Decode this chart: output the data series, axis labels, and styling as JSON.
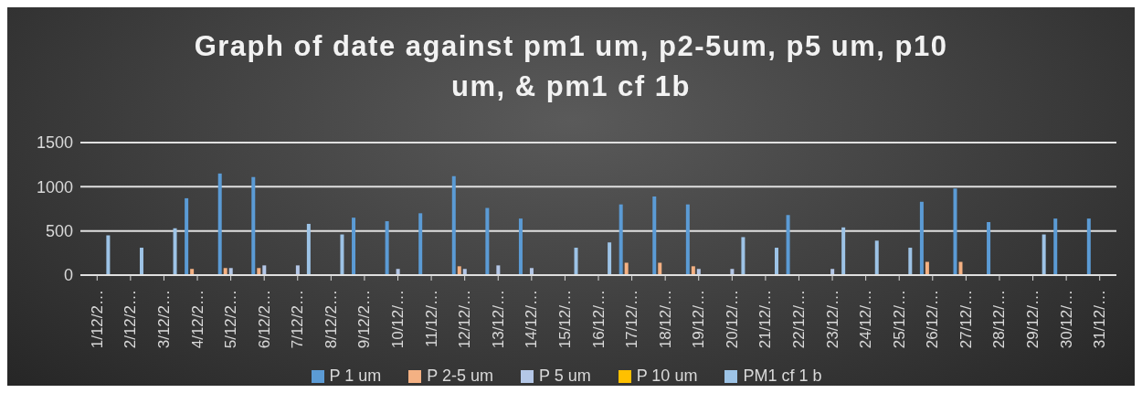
{
  "chart_data": {
    "type": "bar",
    "title": "Graph of date against pm1 um, p2-5um, p5 um, p10 um, & pm1 cf 1b",
    "categories": [
      "1/12/2…",
      "2/12/2…",
      "3/12/2…",
      "4/12/2…",
      "5/12/2…",
      "6/12/2…",
      "7/12/2…",
      "8/12/2…",
      "9/12/2…",
      "10/12/…",
      "11/12/…",
      "12/12/…",
      "13/12/…",
      "14/12/…",
      "15/12/…",
      "16/12/…",
      "17/12/…",
      "18/12/…",
      "19/12/…",
      "20/12/…",
      "21/12/…",
      "22/12/…",
      "23/12/…",
      "24/12/…",
      "25/12/…",
      "26/12/…",
      "27/12/…",
      "28/12/…",
      "29/12/…",
      "30/12/…",
      "31/12/…"
    ],
    "series": [
      {
        "name": "P 1 um",
        "color": "#5b9bd5",
        "values": [
          null,
          null,
          null,
          870,
          1150,
          1110,
          null,
          null,
          650,
          610,
          700,
          1120,
          760,
          640,
          null,
          null,
          800,
          890,
          800,
          null,
          null,
          680,
          null,
          null,
          null,
          830,
          980,
          600,
          null,
          640,
          640
        ]
      },
      {
        "name": "P 2-5 um",
        "color": "#f4b183",
        "values": [
          null,
          null,
          null,
          70,
          80,
          80,
          null,
          null,
          null,
          null,
          null,
          100,
          null,
          null,
          null,
          null,
          140,
          140,
          100,
          null,
          null,
          null,
          null,
          null,
          null,
          150,
          150,
          null,
          null,
          null,
          null
        ]
      },
      {
        "name": "P 5 um",
        "color": "#b4c7e7",
        "values": [
          null,
          null,
          null,
          null,
          80,
          110,
          110,
          null,
          null,
          70,
          null,
          70,
          110,
          80,
          null,
          null,
          null,
          null,
          70,
          70,
          null,
          null,
          70,
          null,
          null,
          null,
          null,
          null,
          null,
          null,
          null
        ]
      },
      {
        "name": "P 10 um",
        "color": "#ffc000",
        "values": [
          null,
          null,
          null,
          null,
          null,
          null,
          null,
          null,
          null,
          null,
          null,
          null,
          null,
          null,
          null,
          null,
          null,
          null,
          null,
          null,
          null,
          null,
          null,
          null,
          null,
          null,
          null,
          null,
          null,
          null,
          null
        ]
      },
      {
        "name": "PM1 cf 1 b",
        "color": "#9dc3e6",
        "values": [
          450,
          310,
          530,
          null,
          null,
          null,
          580,
          460,
          null,
          null,
          null,
          null,
          null,
          null,
          310,
          370,
          null,
          null,
          null,
          430,
          310,
          null,
          540,
          390,
          310,
          null,
          null,
          null,
          460,
          null,
          null
        ]
      }
    ],
    "ylim": [
      0,
      1500
    ],
    "yticks": [
      0,
      500,
      1000,
      1500
    ],
    "grid": "y",
    "legend": "bottom"
  }
}
